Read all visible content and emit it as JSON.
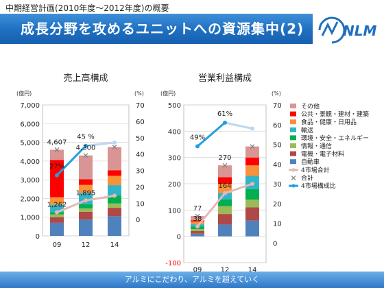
{
  "header": {
    "subtitle": "中期経営計画(2010年度～2012年度)の概要",
    "title": "成長分野を攻めるユニットへの資源集中(2)"
  },
  "logo": {
    "text": "NLM"
  },
  "footer": {
    "text": "アルミにこだわり、アルミを超えていく"
  },
  "legend": {
    "items": [
      {
        "label": "その他",
        "color": "#d99594",
        "kind": "box"
      },
      {
        "label": "公共・景観・建材・建築",
        "color": "#ff0000",
        "kind": "box"
      },
      {
        "label": "食品・健康・日用品",
        "color": "#f7923a",
        "kind": "box"
      },
      {
        "label": "輸送",
        "color": "#31b4c8",
        "kind": "box"
      },
      {
        "label": "環境・安全・エネルギー",
        "color": "#00b050",
        "kind": "box"
      },
      {
        "label": "情報・通信",
        "color": "#9bbb59",
        "kind": "box"
      },
      {
        "label": "電機・電子材料",
        "color": "#b04848",
        "kind": "box"
      },
      {
        "label": "自動車",
        "color": "#4f81bd",
        "kind": "box"
      },
      {
        "label": "4市場合計",
        "color": "#e6b8b7",
        "kind": "line"
      },
      {
        "label": "合計",
        "color": "#7f7f7f",
        "kind": "marker"
      },
      {
        "label": "4市場構成比",
        "color": "#1fa0e0",
        "kind": "line"
      }
    ]
  },
  "chart_data": [
    {
      "type": "bar",
      "title": "売上高構成",
      "categories": [
        "09",
        "12",
        "14"
      ],
      "unit_left": "(億円)",
      "unit_right": "(%)",
      "ylim": [
        0,
        7000
      ],
      "yticks": [
        "0",
        "1,000",
        "2,000",
        "3,000",
        "4,000",
        "5,000",
        "6,000",
        "7,000"
      ],
      "y2lim": [
        -10,
        70
      ],
      "y2ticks": [
        "0",
        "10",
        "20",
        "30",
        "40",
        "50",
        "60",
        "70"
      ],
      "stacked_series": [
        {
          "name": "自動車",
          "values": [
            700,
            870,
            1050
          ],
          "color": "#4f81bd"
        },
        {
          "name": "電機・電子材料",
          "values": [
            300,
            420,
            450
          ],
          "color": "#b04848"
        },
        {
          "name": "情報・通信",
          "values": [
            150,
            180,
            230
          ],
          "color": "#9bbb59"
        },
        {
          "name": "環境・安全・エネルギー",
          "values": [
            112,
            225,
            430
          ],
          "color": "#00b050"
        },
        {
          "name": "輸送",
          "values": [
            400,
            600,
            550
          ],
          "color": "#31b4c8"
        },
        {
          "name": "食品・健康・日用品",
          "values": [
            400,
            430,
            500
          ],
          "color": "#f7923a"
        },
        {
          "name": "公共・景観・建材・建築",
          "values": [
            2000,
            300,
            300
          ],
          "color": "#ff0000"
        },
        {
          "name": "その他",
          "values": [
            545,
            1275,
            1240
          ],
          "color": "#d99594"
        }
      ],
      "line_left": {
        "name": "4市場合計",
        "values": [
          1262,
          1895,
          2150
        ],
        "color": "#e6b8b7"
      },
      "total": {
        "name": "合計",
        "values": [
          4607,
          4300,
          4750
        ]
      },
      "line_right": {
        "name": "4市場構成比",
        "values": [
          27,
          45,
          47
        ],
        "color": "#1fa0e0"
      },
      "labels": [
        {
          "text": "4,607",
          "series": "total",
          "index": 0
        },
        {
          "text": "4,300",
          "series": "total",
          "index": 1
        },
        {
          "text": "1,262",
          "series": "line_left",
          "index": 0
        },
        {
          "text": "1,895",
          "series": "line_left",
          "index": 1
        },
        {
          "text": "27%",
          "series": "line_right",
          "index": 0
        },
        {
          "text": "45 %",
          "series": "line_right",
          "index": 1
        }
      ]
    },
    {
      "type": "bar",
      "title": "営業利益構成",
      "categories": [
        "09",
        "12",
        "14"
      ],
      "unit_left": "(億円)",
      "unit_right": "(%)",
      "ylim": [
        -100,
        500
      ],
      "yticks": [
        "-100",
        "0",
        "100",
        "200",
        "300",
        "400",
        "500"
      ],
      "y2lim": [
        -10,
        70
      ],
      "y2ticks": [
        "0",
        "10",
        "20",
        "30",
        "40",
        "50",
        "60",
        "70"
      ],
      "stacked_series": [
        {
          "name": "自動車",
          "values": [
            10,
            45,
            60
          ],
          "color": "#4f81bd"
        },
        {
          "name": "電機・電子材料",
          "values": [
            10,
            40,
            50
          ],
          "color": "#b04848"
        },
        {
          "name": "情報・通信",
          "values": [
            8,
            30,
            30
          ],
          "color": "#9bbb59"
        },
        {
          "name": "環境・安全・エネルギー",
          "values": [
            10,
            25,
            40
          ],
          "color": "#00b050"
        },
        {
          "name": "輸送",
          "values": [
            8,
            25,
            50
          ],
          "color": "#31b4c8"
        },
        {
          "name": "食品・健康・日用品",
          "values": [
            10,
            35,
            40
          ],
          "color": "#f7923a"
        },
        {
          "name": "公共・景観・建材・建築",
          "values": [
            5,
            25,
            30
          ],
          "color": "#ff0000"
        },
        {
          "name": "その他",
          "values": [
            16,
            45,
            42
          ],
          "color": "#d99594"
        }
      ],
      "line_left": {
        "name": "4市場合計",
        "values": [
          38,
          164,
          200
        ],
        "color": "#e6b8b7"
      },
      "total": {
        "name": "合計",
        "values": [
          77,
          270,
          342
        ]
      },
      "line_right": {
        "name": "4市場構成比",
        "values": [
          49,
          61,
          58
        ],
        "color": "#1fa0e0"
      },
      "labels": [
        {
          "text": "77",
          "series": "total",
          "index": 0
        },
        {
          "text": "270",
          "series": "total",
          "index": 1
        },
        {
          "text": "38",
          "series": "line_left",
          "index": 0
        },
        {
          "text": "164",
          "series": "line_left",
          "index": 1
        },
        {
          "text": "49%",
          "series": "line_right",
          "index": 0
        },
        {
          "text": "61%",
          "series": "line_right",
          "index": 1
        }
      ]
    }
  ]
}
